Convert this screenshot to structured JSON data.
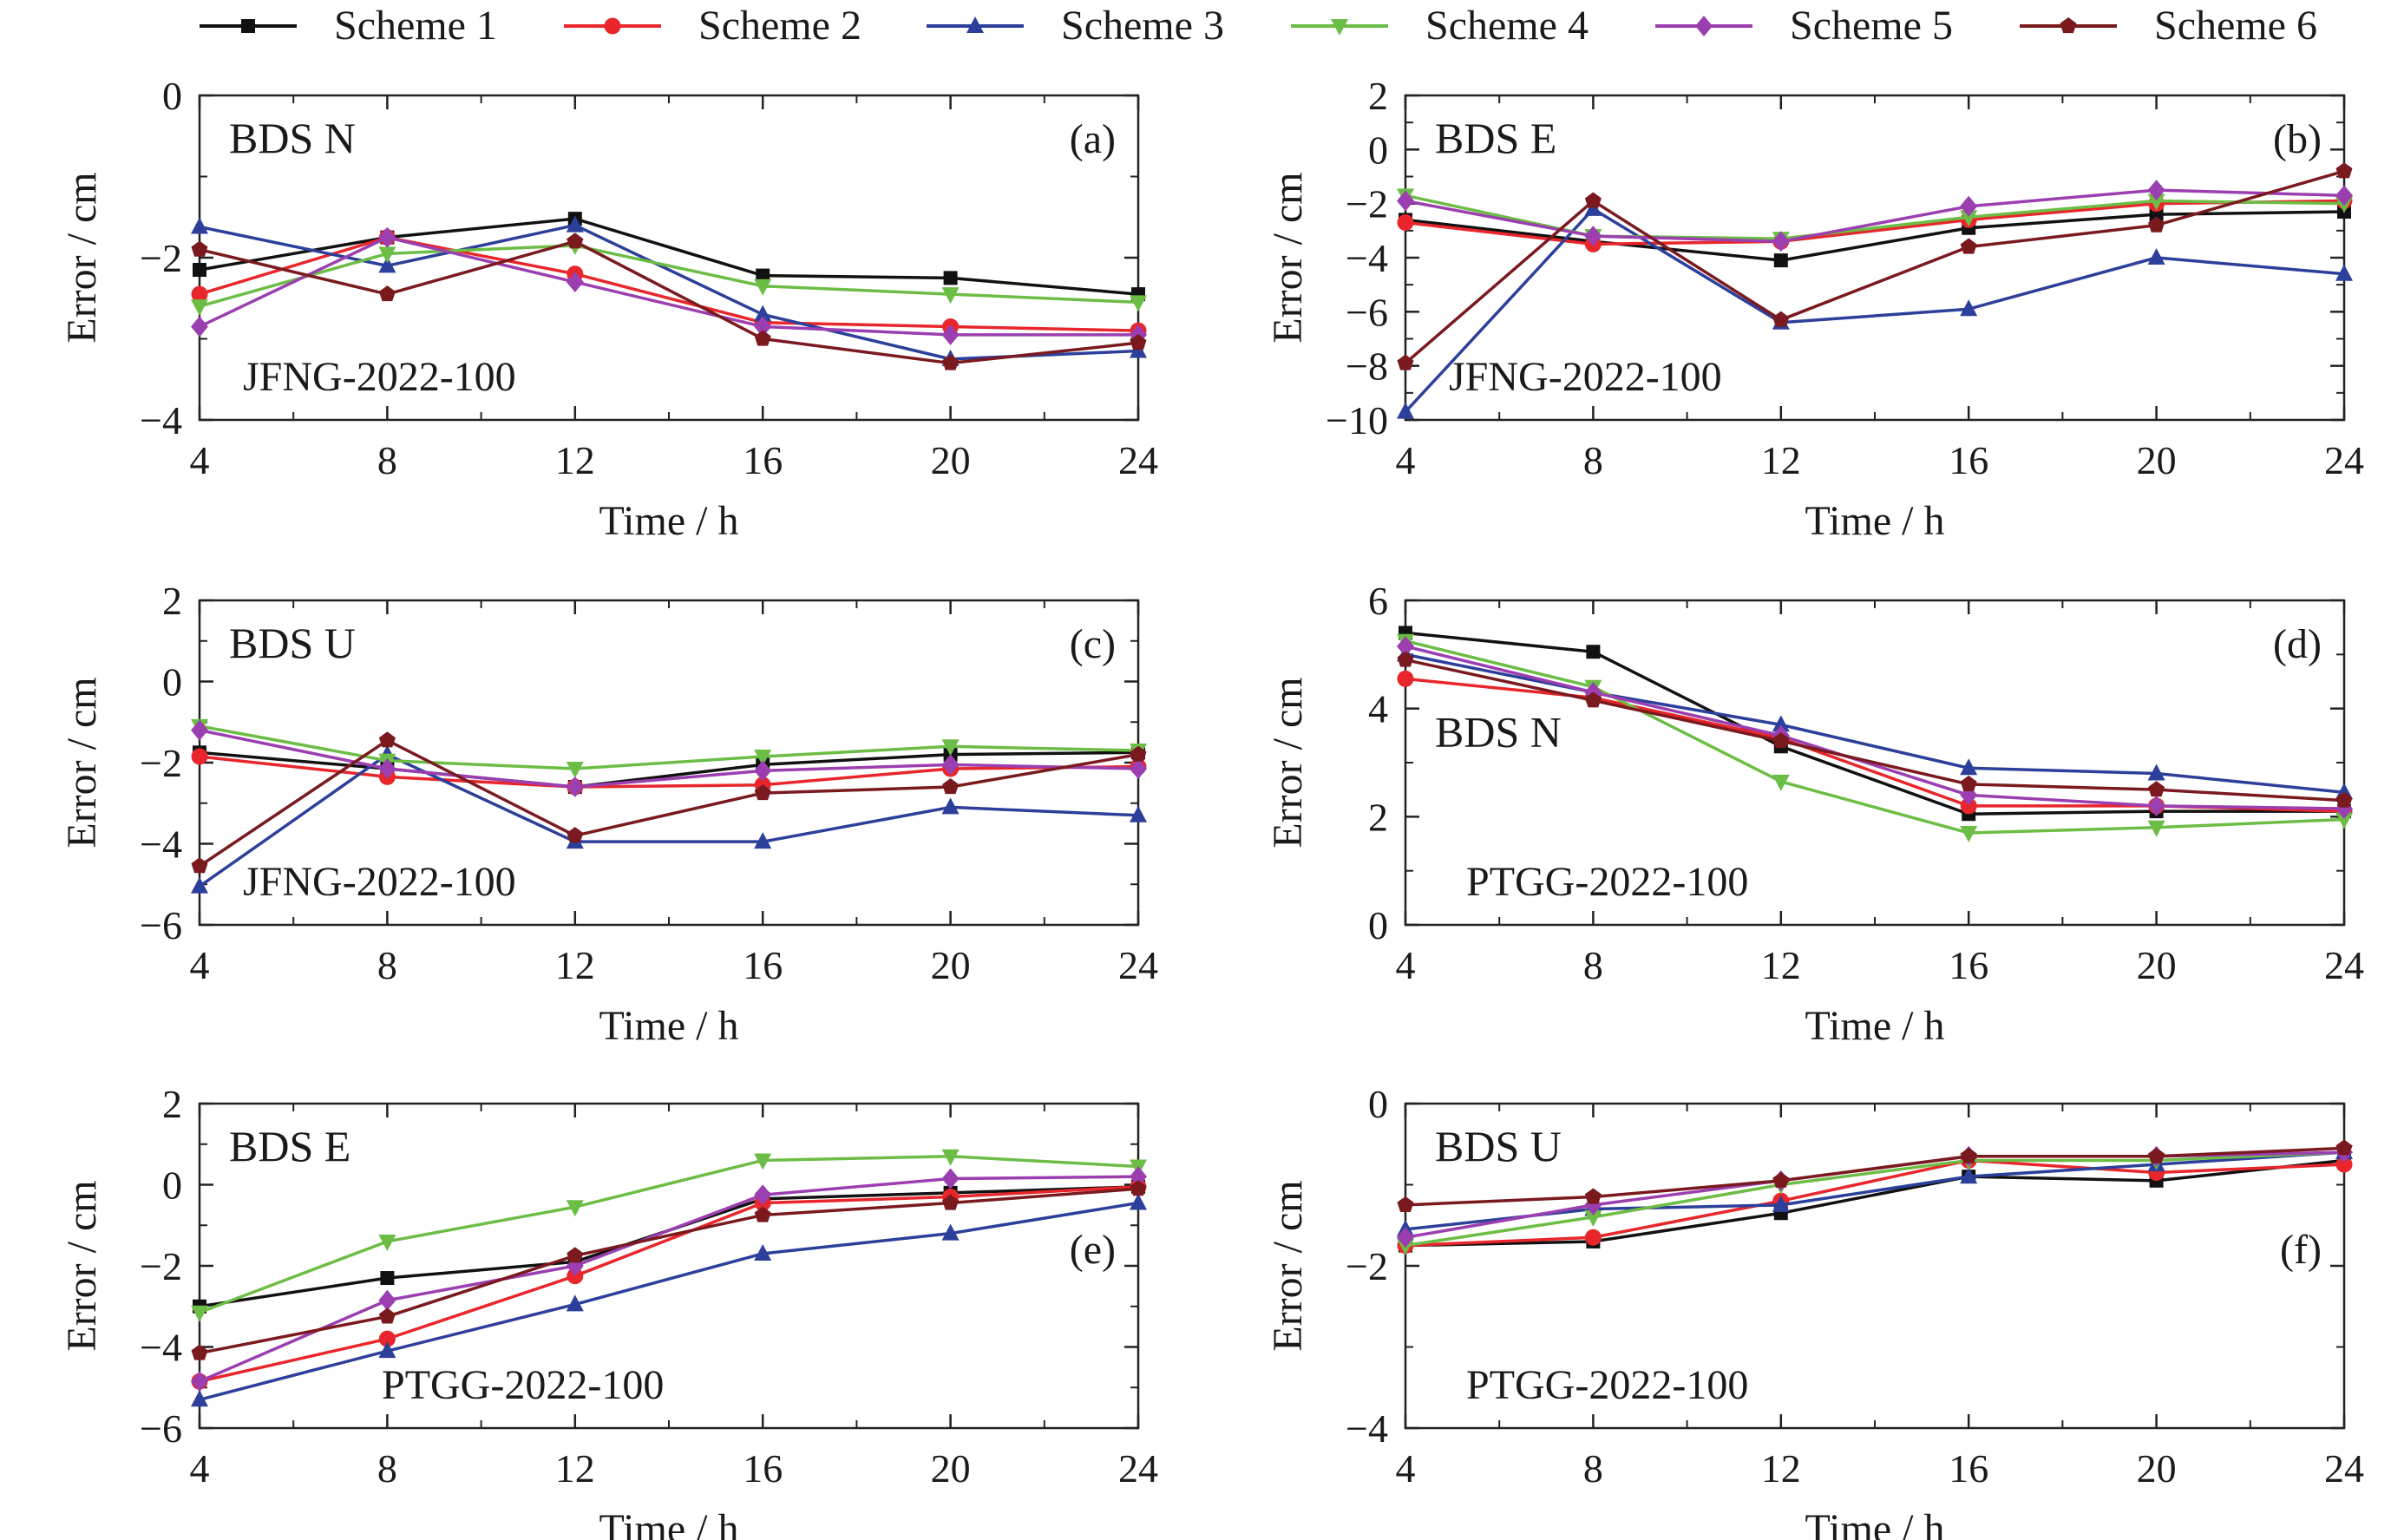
{
  "legend": [
    {
      "name": "Scheme 1",
      "color": "#111111",
      "marker": "square"
    },
    {
      "name": "Scheme 2",
      "color": "#e8262b",
      "marker": "circle"
    },
    {
      "name": "Scheme 3",
      "color": "#2c3f9a",
      "marker": "triangle-up"
    },
    {
      "name": "Scheme 4",
      "color": "#6cbd45",
      "marker": "triangle-down"
    },
    {
      "name": "Scheme 5",
      "color": "#9b3fb0",
      "marker": "diamond"
    },
    {
      "name": "Scheme 6",
      "color": "#7a1a1f",
      "marker": "pentagon"
    }
  ],
  "extra_series_color": "#ee7d2d",
  "chart_data": [
    {
      "type": "line",
      "id": "a",
      "panel_label": "(a)",
      "title": "BDS N",
      "station": "JFNG-2022-100",
      "xlabel": "Time / h",
      "ylabel": "Error / cm",
      "x": [
        4,
        8,
        12,
        16,
        20,
        24
      ],
      "xlim": [
        4,
        24
      ],
      "ylim": [
        -4,
        0
      ],
      "yticks": [
        -4,
        -2,
        0
      ],
      "series": [
        {
          "name": "Scheme 1",
          "values": [
            -2.15,
            -1.75,
            -1.52,
            -2.22,
            -2.25,
            -2.45
          ]
        },
        {
          "name": "Scheme 2",
          "values": [
            -2.45,
            -1.75,
            -2.2,
            -2.8,
            -2.85,
            -2.9
          ]
        },
        {
          "name": "Scheme 3",
          "values": [
            -1.62,
            -2.1,
            -1.6,
            -2.7,
            -3.25,
            -3.15
          ]
        },
        {
          "name": "Scheme 4",
          "values": [
            -2.6,
            -1.95,
            -1.85,
            -2.35,
            -2.45,
            -2.55
          ]
        },
        {
          "name": "Scheme 5",
          "values": [
            -2.85,
            -1.75,
            -2.3,
            -2.85,
            -2.95,
            -2.95
          ]
        },
        {
          "name": "Scheme 6",
          "values": [
            -1.9,
            -2.45,
            -1.8,
            -3.0,
            -3.3,
            -3.05
          ]
        }
      ]
    },
    {
      "type": "line",
      "id": "b",
      "panel_label": "(b)",
      "title": "BDS E",
      "station": "JFNG-2022-100",
      "xlabel": "Time / h",
      "ylabel": "Error / cm",
      "x": [
        4,
        8,
        12,
        16,
        20,
        24
      ],
      "xlim": [
        4,
        24
      ],
      "ylim": [
        -10,
        2
      ],
      "yticks": [
        -10,
        -8,
        -6,
        -4,
        -2,
        0,
        2
      ],
      "series": [
        {
          "name": "Scheme 1",
          "values": [
            -2.6,
            -3.4,
            -4.1,
            -2.9,
            -2.4,
            -2.3
          ]
        },
        {
          "name": "Scheme 2",
          "values": [
            -2.7,
            -3.5,
            -3.4,
            -2.6,
            -2.0,
            -1.9
          ]
        },
        {
          "name": "Scheme 3",
          "values": [
            -9.7,
            -2.2,
            -6.4,
            -5.9,
            -4.0,
            -4.6
          ]
        },
        {
          "name": "Scheme 4",
          "values": [
            -1.7,
            -3.2,
            -3.3,
            -2.5,
            -1.9,
            -2.0
          ]
        },
        {
          "name": "Scheme 5",
          "values": [
            -1.9,
            -3.2,
            -3.4,
            -2.1,
            -1.5,
            -1.7
          ]
        },
        {
          "values": [
            -7.9,
            -1.9,
            -6.3,
            -3.6,
            -2.8,
            -0.8
          ]
        }
      ]
    },
    {
      "type": "line",
      "id": "c",
      "panel_label": "(c)",
      "title": "BDS U",
      "station": "JFNG-2022-100",
      "xlabel": "Time / h",
      "ylabel": "Error / cm",
      "x": [
        4,
        8,
        12,
        16,
        20,
        24
      ],
      "xlim": [
        4,
        24
      ],
      "ylim": [
        -6,
        2
      ],
      "yticks": [
        -6,
        -4,
        -2,
        0,
        2
      ],
      "series": [
        {
          "name": "Scheme 1",
          "values": [
            -1.75,
            -2.15,
            -2.6,
            -2.05,
            -1.8,
            -1.75
          ]
        },
        {
          "name": "Scheme 2",
          "values": [
            -1.85,
            -2.35,
            -2.6,
            -2.55,
            -2.15,
            -2.1
          ]
        },
        {
          "name": "Scheme 3",
          "values": [
            -5.05,
            -1.8,
            -3.95,
            -3.95,
            -3.1,
            -3.3
          ]
        },
        {
          "name": "Scheme 4",
          "values": [
            -1.1,
            -1.95,
            -2.15,
            -1.85,
            -1.6,
            -1.7
          ]
        },
        {
          "name": "Scheme 5",
          "values": [
            -1.2,
            -2.15,
            -2.6,
            -2.2,
            -2.05,
            -2.15
          ]
        },
        {
          "values": [
            -4.55,
            -1.45,
            -3.8,
            -2.75,
            -2.6,
            -1.8
          ]
        }
      ]
    },
    {
      "type": "line",
      "id": "d",
      "panel_label": "(d)",
      "title": "BDS N",
      "station": "PTGG-2022-100",
      "xlabel": "Time / h",
      "ylabel": "Error / cm",
      "x": [
        4,
        8,
        12,
        16,
        20,
        24
      ],
      "xlim": [
        4,
        24
      ],
      "ylim": [
        0,
        6
      ],
      "yticks": [
        0,
        2,
        4,
        6
      ],
      "series": [
        {
          "name": "Scheme 1",
          "values": [
            5.4,
            5.05,
            3.3,
            2.05,
            2.1,
            2.1
          ]
        },
        {
          "name": "Scheme 2",
          "values": [
            4.55,
            4.2,
            3.45,
            2.2,
            2.2,
            2.1
          ]
        },
        {
          "name": "Scheme 3",
          "values": [
            5.0,
            4.3,
            3.7,
            2.9,
            2.8,
            2.45
          ]
        },
        {
          "name": "Scheme 4",
          "values": [
            5.25,
            4.4,
            2.65,
            1.7,
            1.8,
            1.95
          ]
        },
        {
          "name": "Scheme 5",
          "values": [
            5.15,
            4.3,
            3.5,
            2.4,
            2.2,
            2.15
          ]
        },
        {
          "values": [
            4.9,
            4.15,
            3.4,
            2.6,
            2.5,
            2.3
          ]
        }
      ]
    },
    {
      "type": "line",
      "id": "e",
      "panel_label": "(e)",
      "title": "BDS E",
      "station": "PTGG-2022-100",
      "xlabel": "Time / h",
      "ylabel": "Error / cm",
      "x": [
        4,
        8,
        12,
        16,
        20,
        24
      ],
      "xlim": [
        4,
        24
      ],
      "ylim": [
        -6,
        2
      ],
      "yticks": [
        -6,
        -4,
        -2,
        0,
        2
      ],
      "series": [
        {
          "name": "Scheme 1",
          "values": [
            -3.0,
            -2.3,
            -1.9,
            -0.35,
            -0.2,
            -0.05
          ]
        },
        {
          "name": "Scheme 2",
          "values": [
            -4.85,
            -3.8,
            -2.25,
            -0.45,
            -0.3,
            -0.05
          ]
        },
        {
          "name": "Scheme 3",
          "values": [
            -5.3,
            -4.1,
            -2.95,
            -1.7,
            -1.2,
            -0.45
          ]
        },
        {
          "name": "Scheme 4",
          "values": [
            -3.15,
            -1.4,
            -0.55,
            0.6,
            0.7,
            0.45
          ]
        },
        {
          "name": "Scheme 5",
          "values": [
            -4.85,
            -2.85,
            -2.0,
            -0.25,
            0.15,
            0.2
          ]
        },
        {
          "values": [
            -4.15,
            -3.25,
            -1.75,
            -0.75,
            -0.45,
            -0.1
          ]
        }
      ]
    },
    {
      "type": "line",
      "id": "f",
      "panel_label": "(f)",
      "title": "BDS U",
      "station": "PTGG-2022-100",
      "xlabel": "Time / h",
      "ylabel": "Error / cm",
      "x": [
        4,
        8,
        12,
        16,
        20,
        24
      ],
      "xlim": [
        4,
        24
      ],
      "ylim": [
        -4,
        0
      ],
      "yticks": [
        -4,
        -2,
        0
      ],
      "series": [
        {
          "name": "Scheme 1",
          "values": [
            -1.75,
            -1.7,
            -1.35,
            -0.9,
            -0.95,
            -0.7
          ]
        },
        {
          "name": "Scheme 2",
          "values": [
            -1.75,
            -1.65,
            -1.2,
            -0.7,
            -0.85,
            -0.75
          ]
        },
        {
          "name": "Scheme 3",
          "values": [
            -1.55,
            -1.3,
            -1.25,
            -0.9,
            -0.75,
            -0.6
          ]
        },
        {
          "name": "Scheme 4",
          "values": [
            -1.75,
            -1.4,
            -1.0,
            -0.7,
            -0.7,
            -0.6
          ]
        },
        {
          "name": "Scheme 5",
          "values": [
            -1.65,
            -1.25,
            -0.95,
            -0.65,
            -0.65,
            -0.6
          ]
        },
        {
          "values": [
            -1.25,
            -1.15,
            -0.95,
            -0.65,
            -0.65,
            -0.55
          ]
        }
      ]
    }
  ]
}
